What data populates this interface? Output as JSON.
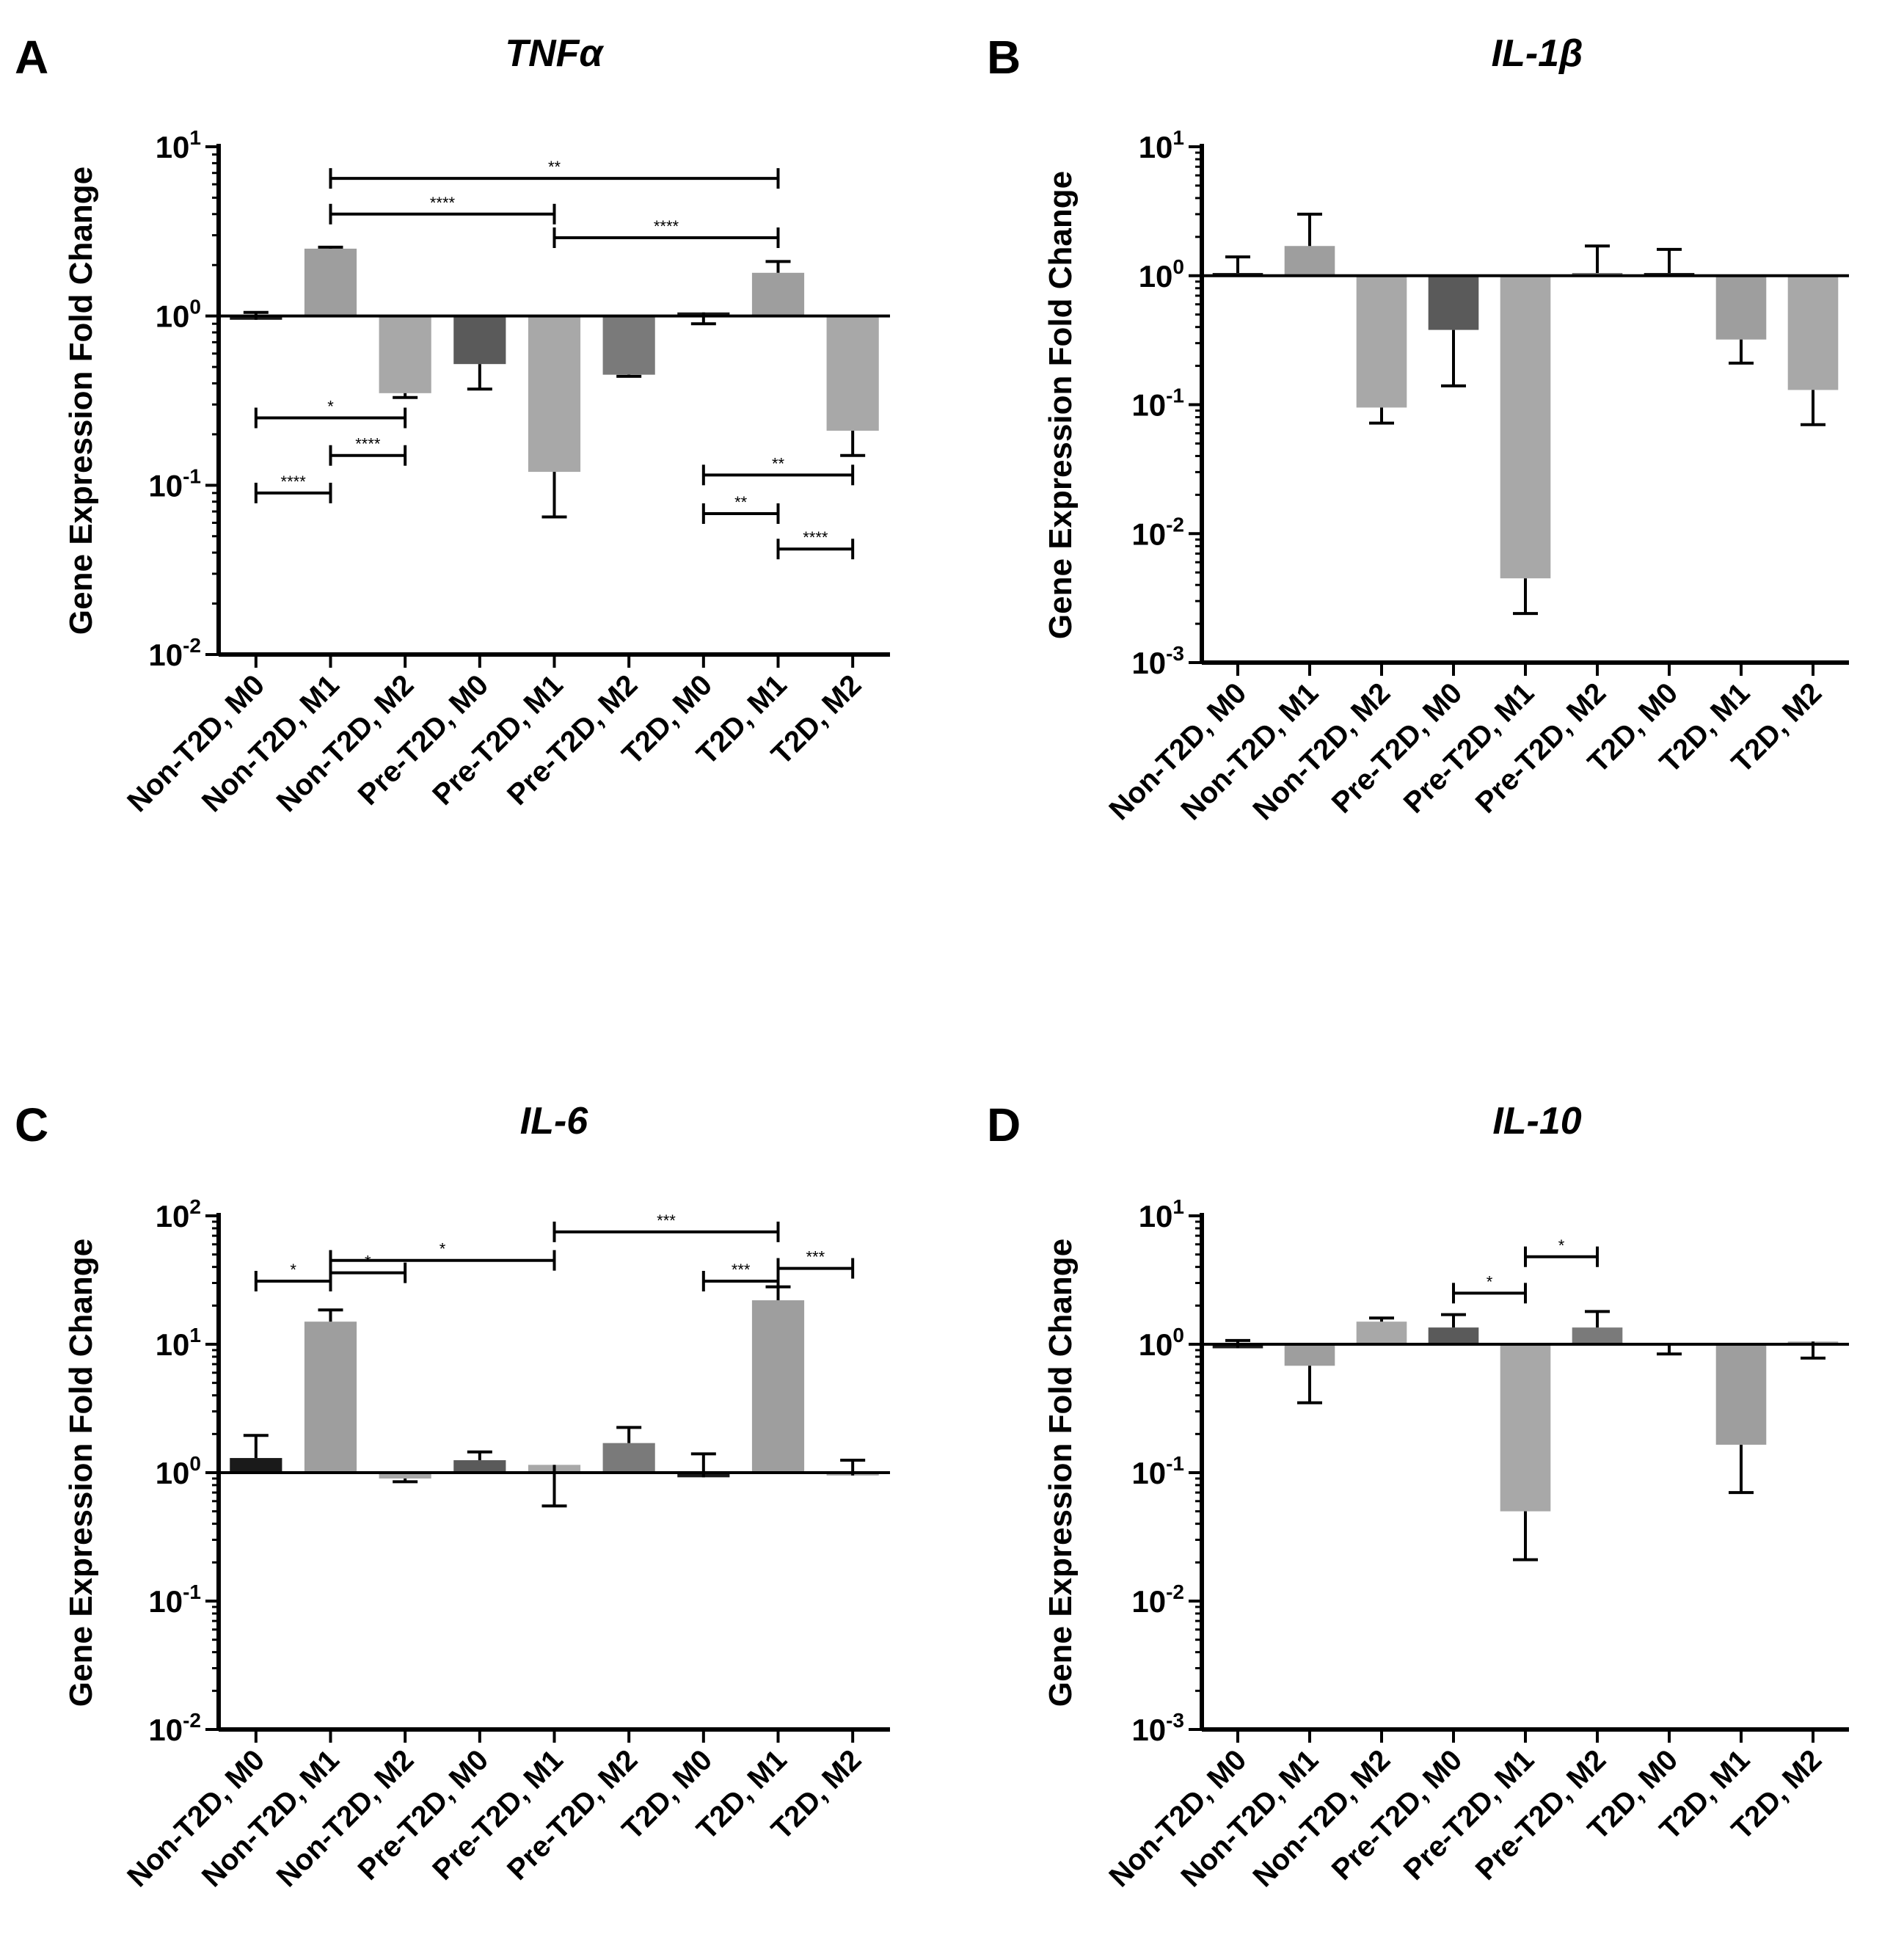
{
  "chart_data": [
    {
      "type": "bar",
      "panel": "A",
      "title": "TNFα",
      "ylabel": "Gene Expression Fold Change",
      "yscale": "log",
      "ylim": [
        0.01,
        10
      ],
      "yticks": [
        {
          "base": "10",
          "exp": "1",
          "value": 10
        },
        {
          "base": "10",
          "exp": "0",
          "value": 1
        },
        {
          "base": "10",
          "exp": "-1",
          "value": 0.1
        },
        {
          "base": "10",
          "exp": "-2",
          "value": 0.01
        }
      ],
      "baseline": 1,
      "categories": [
        "Non-T2D, M0",
        "Non-T2D, M1",
        "Non-T2D, M2",
        "Pre-T2D, M0",
        "Pre-T2D, M1",
        "Pre-T2D, M2",
        "T2D, M0",
        "T2D, M1",
        "T2D, M2"
      ],
      "values": [
        0.95,
        2.5,
        0.35,
        0.52,
        0.12,
        0.45,
        1.05,
        1.8,
        0.21
      ],
      "error_ends": [
        1.05,
        2.55,
        0.33,
        0.37,
        0.065,
        0.44,
        0.9,
        2.1,
        0.15
      ],
      "colors": [
        "#1a1a1a",
        "#9e9e9e",
        "#a8a8a8",
        "#5a5a5a",
        "#a8a8a8",
        "#7a7a7a",
        "#1a1a1a",
        "#9e9e9e",
        "#a8a8a8"
      ],
      "comparisons": [
        {
          "from": 1,
          "to": 7,
          "y": 6.5,
          "label": "**"
        },
        {
          "from": 1,
          "to": 4,
          "y": 4.0,
          "label": "****"
        },
        {
          "from": 4,
          "to": 7,
          "y": 2.9,
          "label": "****"
        },
        {
          "from": 0,
          "to": 2,
          "y": 0.25,
          "label": "*"
        },
        {
          "from": 1,
          "to": 2,
          "y": 0.15,
          "label": "****"
        },
        {
          "from": 0,
          "to": 1,
          "y": 0.09,
          "label": "****"
        },
        {
          "from": 6,
          "to": 8,
          "y": 0.115,
          "label": "**"
        },
        {
          "from": 6,
          "to": 7,
          "y": 0.068,
          "label": "**"
        },
        {
          "from": 7,
          "to": 8,
          "y": 0.042,
          "label": "****"
        }
      ]
    },
    {
      "type": "bar",
      "panel": "B",
      "title": "IL-1β",
      "ylabel": "Gene Expression Fold Change",
      "yscale": "log",
      "ylim": [
        0.001,
        10
      ],
      "yticks": [
        {
          "base": "10",
          "exp": "1",
          "value": 10
        },
        {
          "base": "10",
          "exp": "0",
          "value": 1
        },
        {
          "base": "10",
          "exp": "-1",
          "value": 0.1
        },
        {
          "base": "10",
          "exp": "-2",
          "value": 0.01
        },
        {
          "base": "10",
          "exp": "-3",
          "value": 0.001
        }
      ],
      "baseline": 1,
      "categories": [
        "Non-T2D, M0",
        "Non-T2D, M1",
        "Non-T2D, M2",
        "Pre-T2D, M0",
        "Pre-T2D, M1",
        "Pre-T2D, M2",
        "T2D, M0",
        "T2D, M1",
        "T2D, M2"
      ],
      "values": [
        1.05,
        1.7,
        0.095,
        0.38,
        0.0045,
        1.05,
        1.05,
        0.32,
        0.13
      ],
      "error_ends": [
        1.4,
        3.0,
        0.072,
        0.14,
        0.0024,
        1.7,
        1.6,
        0.21,
        0.07
      ],
      "colors": [
        "#1a1a1a",
        "#9e9e9e",
        "#a8a8a8",
        "#5a5a5a",
        "#a8a8a8",
        "#7a7a7a",
        "#1a1a1a",
        "#9e9e9e",
        "#a8a8a8"
      ],
      "comparisons": []
    },
    {
      "type": "bar",
      "panel": "C",
      "title": "IL-6",
      "ylabel": "Gene Expression Fold Change",
      "yscale": "log",
      "ylim": [
        0.01,
        100
      ],
      "yticks": [
        {
          "base": "10",
          "exp": "2",
          "value": 100
        },
        {
          "base": "10",
          "exp": "1",
          "value": 10
        },
        {
          "base": "10",
          "exp": "0",
          "value": 1
        },
        {
          "base": "10",
          "exp": "-1",
          "value": 0.1
        },
        {
          "base": "10",
          "exp": "-2",
          "value": 0.01
        }
      ],
      "baseline": 1,
      "categories": [
        "Non-T2D, M0",
        "Non-T2D, M1",
        "Non-T2D, M2",
        "Pre-T2D, M0",
        "Pre-T2D, M1",
        "Pre-T2D, M2",
        "T2D, M0",
        "T2D, M1",
        "T2D, M2"
      ],
      "values": [
        1.3,
        15,
        0.9,
        1.25,
        1.15,
        1.7,
        0.92,
        22,
        0.95
      ],
      "error_ends": [
        1.95,
        18.5,
        0.85,
        1.45,
        0.55,
        2.25,
        1.4,
        28,
        1.25
      ],
      "colors": [
        "#1a1a1a",
        "#9e9e9e",
        "#a8a8a8",
        "#5a5a5a",
        "#a8a8a8",
        "#7a7a7a",
        "#1a1a1a",
        "#9e9e9e",
        "#a8a8a8"
      ],
      "comparisons": [
        {
          "from": 4,
          "to": 7,
          "y": 75,
          "label": "***"
        },
        {
          "from": 1,
          "to": 4,
          "y": 45,
          "label": "*"
        },
        {
          "from": 1,
          "to": 2,
          "y": 36,
          "label": "*"
        },
        {
          "from": 7,
          "to": 8,
          "y": 39,
          "label": "***"
        },
        {
          "from": 0,
          "to": 1,
          "y": 31,
          "label": "*"
        },
        {
          "from": 6,
          "to": 7,
          "y": 31,
          "label": "***"
        }
      ]
    },
    {
      "type": "bar",
      "panel": "D",
      "title": "IL-10",
      "ylabel": "Gene Expression Fold Change",
      "yscale": "log",
      "ylim": [
        0.001,
        10
      ],
      "yticks": [
        {
          "base": "10",
          "exp": "1",
          "value": 10
        },
        {
          "base": "10",
          "exp": "0",
          "value": 1
        },
        {
          "base": "10",
          "exp": "-1",
          "value": 0.1
        },
        {
          "base": "10",
          "exp": "-2",
          "value": 0.01
        },
        {
          "base": "10",
          "exp": "-3",
          "value": 0.001
        }
      ],
      "baseline": 1,
      "categories": [
        "Non-T2D, M0",
        "Non-T2D, M1",
        "Non-T2D, M2",
        "Pre-T2D, M0",
        "Pre-T2D, M1",
        "Pre-T2D, M2",
        "T2D, M0",
        "T2D, M1",
        "T2D, M2"
      ],
      "values": [
        0.93,
        0.68,
        1.5,
        1.35,
        0.05,
        1.35,
        1.02,
        0.165,
        1.05
      ],
      "error_ends": [
        1.07,
        0.35,
        1.6,
        1.7,
        0.021,
        1.8,
        0.84,
        0.07,
        0.78
      ],
      "colors": [
        "#1a1a1a",
        "#9e9e9e",
        "#a8a8a8",
        "#5a5a5a",
        "#a8a8a8",
        "#7a7a7a",
        "#1a1a1a",
        "#9e9e9e",
        "#a8a8a8"
      ],
      "comparisons": [
        {
          "from": 3,
          "to": 4,
          "y": 2.5,
          "label": "*"
        },
        {
          "from": 4,
          "to": 5,
          "y": 4.8,
          "label": "*"
        }
      ]
    }
  ]
}
